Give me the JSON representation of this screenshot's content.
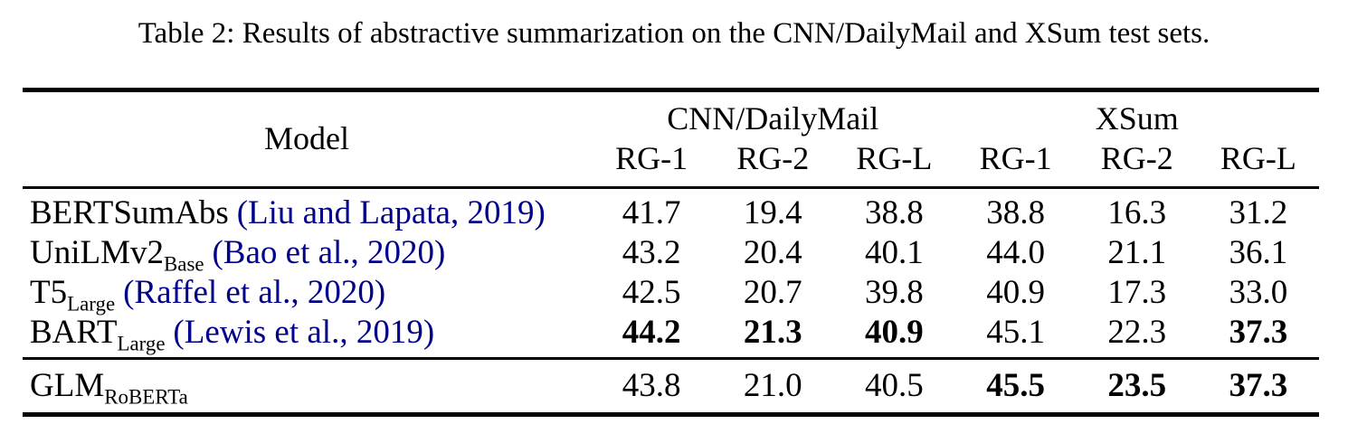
{
  "title": "Table 2: Results of abstractive summarization on the CNN/DailyMail and XSum test sets.",
  "colors": {
    "citation": "#00008B",
    "text": "#000000",
    "rule": "#000000",
    "background": "#ffffff"
  },
  "table": {
    "model_header": "Model",
    "groups": [
      {
        "label": "CNN/DailyMail",
        "columns": [
          "RG-1",
          "RG-2",
          "RG-L"
        ]
      },
      {
        "label": "XSum",
        "columns": [
          "RG-1",
          "RG-2",
          "RG-L"
        ]
      }
    ],
    "rows": [
      {
        "model": "BERTSumAbs",
        "subscript": "",
        "citation": "(Liu and Lapata, 2019)",
        "values": [
          "41.7",
          "19.4",
          "38.8",
          "38.8",
          "16.3",
          "31.2"
        ],
        "bold": [
          false,
          false,
          false,
          false,
          false,
          false
        ]
      },
      {
        "model": "UniLMv2",
        "subscript": "Base",
        "citation": "(Bao et al., 2020)",
        "values": [
          "43.2",
          "20.4",
          "40.1",
          "44.0",
          "21.1",
          "36.1"
        ],
        "bold": [
          false,
          false,
          false,
          false,
          false,
          false
        ]
      },
      {
        "model": "T5",
        "subscript": "Large",
        "citation": "(Raffel et al., 2020)",
        "values": [
          "42.5",
          "20.7",
          "39.8",
          "40.9",
          "17.3",
          "33.0"
        ],
        "bold": [
          false,
          false,
          false,
          false,
          false,
          false
        ]
      },
      {
        "model": "BART",
        "subscript": "Large",
        "citation": "(Lewis et al., 2019)",
        "values": [
          "44.2",
          "21.3",
          "40.9",
          "45.1",
          "22.3",
          "37.3"
        ],
        "bold": [
          true,
          true,
          true,
          false,
          false,
          true
        ]
      }
    ],
    "footer_row": {
      "model": "GLM",
      "subscript": "RoBERTa",
      "citation": "",
      "values": [
        "43.8",
        "21.0",
        "40.5",
        "45.5",
        "23.5",
        "37.3"
      ],
      "bold": [
        false,
        false,
        false,
        true,
        true,
        true
      ]
    }
  }
}
